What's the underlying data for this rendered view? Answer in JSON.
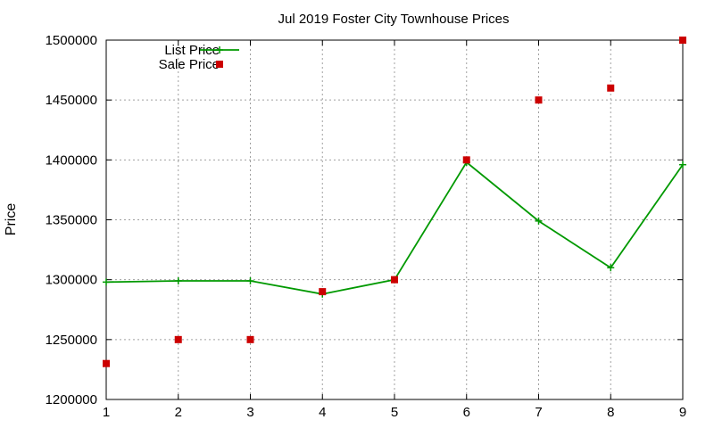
{
  "chart_data": {
    "type": "line",
    "title": "Jul 2019 Foster City Townhouse Prices",
    "xlabel": "",
    "ylabel": "Price",
    "x": [
      1,
      2,
      3,
      4,
      5,
      6,
      7,
      8,
      9
    ],
    "xlim": [
      1,
      9
    ],
    "ylim": [
      1200000,
      1500000
    ],
    "x_ticks": [
      "1",
      "2",
      "3",
      "4",
      "5",
      "6",
      "7",
      "8",
      "9"
    ],
    "y_ticks": [
      "1200000",
      "1250000",
      "1300000",
      "1350000",
      "1400000",
      "1450000",
      "1500000"
    ],
    "grid": true,
    "legend_position": "top-left",
    "series": [
      {
        "name": "List Price",
        "style": "line-plus",
        "color": "#009900",
        "values": [
          1298000,
          1299000,
          1299000,
          1288000,
          1300000,
          1398000,
          1349000,
          1310000,
          1396000
        ]
      },
      {
        "name": "Sale Price",
        "style": "square-points",
        "color": "#cc0000",
        "values": [
          1230000,
          1250000,
          1250000,
          1290000,
          1300000,
          1400000,
          1450000,
          1460000,
          1500000
        ]
      }
    ]
  }
}
